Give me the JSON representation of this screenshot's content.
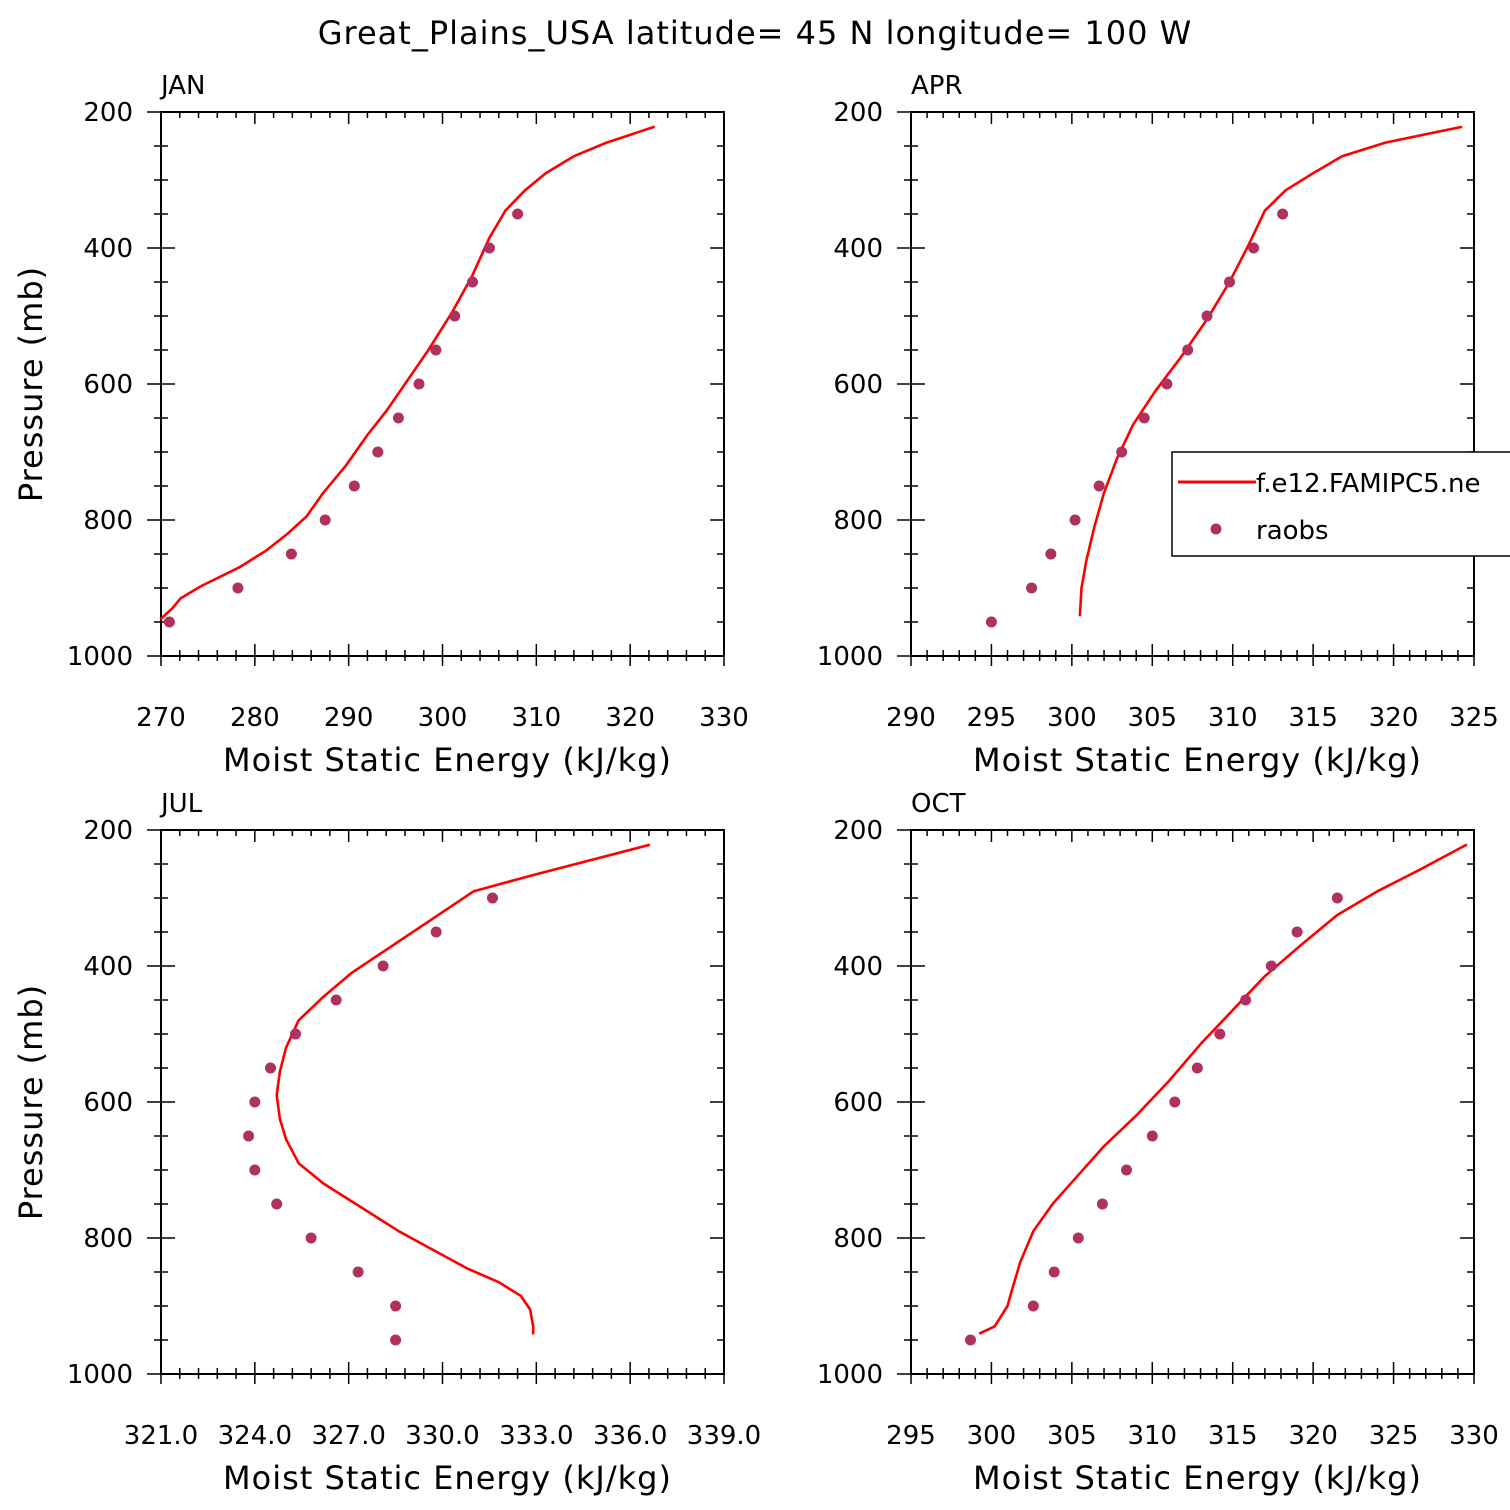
{
  "title": "Great_Plains_USA  latitude= 45 N longitude= 100 W",
  "colors": {
    "model": "#ff0000",
    "obs": "#b03060"
  },
  "legend": {
    "location": "APR panel, right side",
    "items": [
      {
        "label": "f.e12.FAMIPC5.ne",
        "kind": "line"
      },
      {
        "label": "raobs",
        "kind": "marker"
      }
    ]
  },
  "chart_data": [
    {
      "type": "line",
      "panel_title": "JAN",
      "xlabel": "Moist Static Energy (kJ/kg)",
      "ylabel": "Pressure (mb)",
      "xlim": [
        270,
        330
      ],
      "ylim": [
        200,
        1000
      ],
      "y_inverted": true,
      "xticks": [
        "270",
        "280",
        "290",
        "300",
        "310",
        "320",
        "330"
      ],
      "yticks": [
        "200",
        "400",
        "600",
        "800",
        "1000"
      ],
      "grid": false,
      "series": [
        {
          "kind": "line",
          "x": [
            270.0,
            271.2,
            272.1,
            274.3,
            278.3,
            281.2,
            283.5,
            285.5,
            287.3,
            289.7,
            292.0,
            294.0,
            296.0,
            298.5,
            301.0,
            303.2,
            305.0,
            306.7,
            308.8,
            311.0,
            314.0,
            317.5,
            322.5
          ],
          "y": [
            945,
            930,
            915,
            897,
            870,
            845,
            820,
            795,
            760,
            720,
            675,
            640,
            600,
            550,
            495,
            440,
            385,
            345,
            315,
            290,
            265,
            245,
            222
          ]
        },
        {
          "kind": "scatter",
          "x": [
            270.9,
            278.2,
            283.9,
            287.5,
            290.6,
            293.1,
            295.3,
            297.5,
            299.3,
            301.3,
            303.2,
            305.0,
            308.0
          ],
          "y": [
            950,
            900,
            850,
            800,
            750,
            700,
            650,
            600,
            550,
            500,
            450,
            400,
            350
          ]
        }
      ]
    },
    {
      "type": "line",
      "panel_title": "APR",
      "xlabel": "Moist Static Energy (kJ/kg)",
      "ylabel": "",
      "xlim": [
        290,
        325
      ],
      "ylim": [
        200,
        1000
      ],
      "y_inverted": true,
      "xticks": [
        "290",
        "295",
        "300",
        "305",
        "310",
        "315",
        "320",
        "325"
      ],
      "yticks": [
        "200",
        "400",
        "600",
        "800",
        "1000"
      ],
      "grid": false,
      "series": [
        {
          "kind": "line",
          "x": [
            300.5,
            300.6,
            300.9,
            301.4,
            302.0,
            302.8,
            303.8,
            305.2,
            306.8,
            308.4,
            309.8,
            311.0,
            312.0,
            313.3,
            315.0,
            316.8,
            319.5,
            324.2
          ],
          "y": [
            940,
            900,
            860,
            810,
            760,
            710,
            660,
            610,
            560,
            505,
            450,
            395,
            345,
            315,
            290,
            265,
            245,
            222
          ]
        },
        {
          "kind": "scatter",
          "x": [
            295.0,
            297.5,
            298.7,
            300.2,
            301.7,
            303.1,
            304.5,
            305.9,
            307.2,
            308.4,
            309.8,
            311.3,
            313.1
          ],
          "y": [
            950,
            900,
            850,
            800,
            750,
            700,
            650,
            600,
            550,
            500,
            450,
            400,
            350
          ]
        }
      ]
    },
    {
      "type": "line",
      "panel_title": "JUL",
      "xlabel": "Moist Static Energy (kJ/kg)",
      "ylabel": "Pressure (mb)",
      "xlim": [
        321.0,
        339.0
      ],
      "ylim": [
        200,
        1000
      ],
      "y_inverted": true,
      "xticks": [
        "321.0",
        "324.0",
        "327.0",
        "330.0",
        "333.0",
        "336.0",
        "339.0"
      ],
      "yticks": [
        "200",
        "400",
        "600",
        "800",
        "1000"
      ],
      "grid": false,
      "series": [
        {
          "kind": "line",
          "x": [
            332.9,
            332.9,
            332.8,
            332.5,
            331.8,
            330.8,
            329.8,
            328.6,
            327.4,
            326.2,
            325.4,
            325.0,
            324.8,
            324.7,
            324.8,
            325.0,
            325.4,
            326.2,
            327.1,
            328.4,
            329.7,
            331.0,
            333.0,
            336.6
          ],
          "y": [
            940,
            930,
            905,
            885,
            865,
            845,
            820,
            790,
            755,
            720,
            690,
            655,
            625,
            590,
            555,
            520,
            480,
            445,
            410,
            370,
            330,
            290,
            265,
            222
          ]
        },
        {
          "kind": "scatter",
          "x": [
            328.5,
            328.5,
            327.3,
            325.8,
            324.7,
            324.0,
            323.8,
            324.0,
            324.5,
            325.3,
            326.6,
            328.1,
            329.8,
            331.6
          ],
          "y": [
            950,
            900,
            850,
            800,
            750,
            700,
            650,
            600,
            550,
            500,
            450,
            400,
            350,
            300
          ]
        }
      ]
    },
    {
      "type": "line",
      "panel_title": "OCT",
      "xlabel": "Moist Static Energy (kJ/kg)",
      "ylabel": "",
      "xlim": [
        295,
        330
      ],
      "ylim": [
        200,
        1000
      ],
      "y_inverted": true,
      "xticks": [
        "295",
        "300",
        "305",
        "310",
        "315",
        "320",
        "325",
        "330"
      ],
      "yticks": [
        "200",
        "400",
        "600",
        "800",
        "1000"
      ],
      "grid": false,
      "series": [
        {
          "kind": "line",
          "x": [
            299.3,
            300.2,
            300.6,
            301.0,
            301.3,
            301.8,
            302.6,
            303.8,
            305.3,
            307.0,
            309.0,
            311.0,
            313.0,
            315.0,
            317.0,
            319.2,
            321.5,
            324.0,
            326.5,
            329.5
          ],
          "y": [
            940,
            930,
            915,
            900,
            875,
            835,
            790,
            750,
            710,
            665,
            620,
            570,
            515,
            465,
            415,
            370,
            325,
            290,
            260,
            222
          ]
        },
        {
          "kind": "scatter",
          "x": [
            298.7,
            302.6,
            303.9,
            305.4,
            306.9,
            308.4,
            310.0,
            311.4,
            312.8,
            314.2,
            315.8,
            317.4,
            319.0,
            321.5
          ],
          "y": [
            950,
            900,
            850,
            800,
            750,
            700,
            650,
            600,
            550,
            500,
            450,
            400,
            350,
            300
          ]
        }
      ]
    }
  ]
}
